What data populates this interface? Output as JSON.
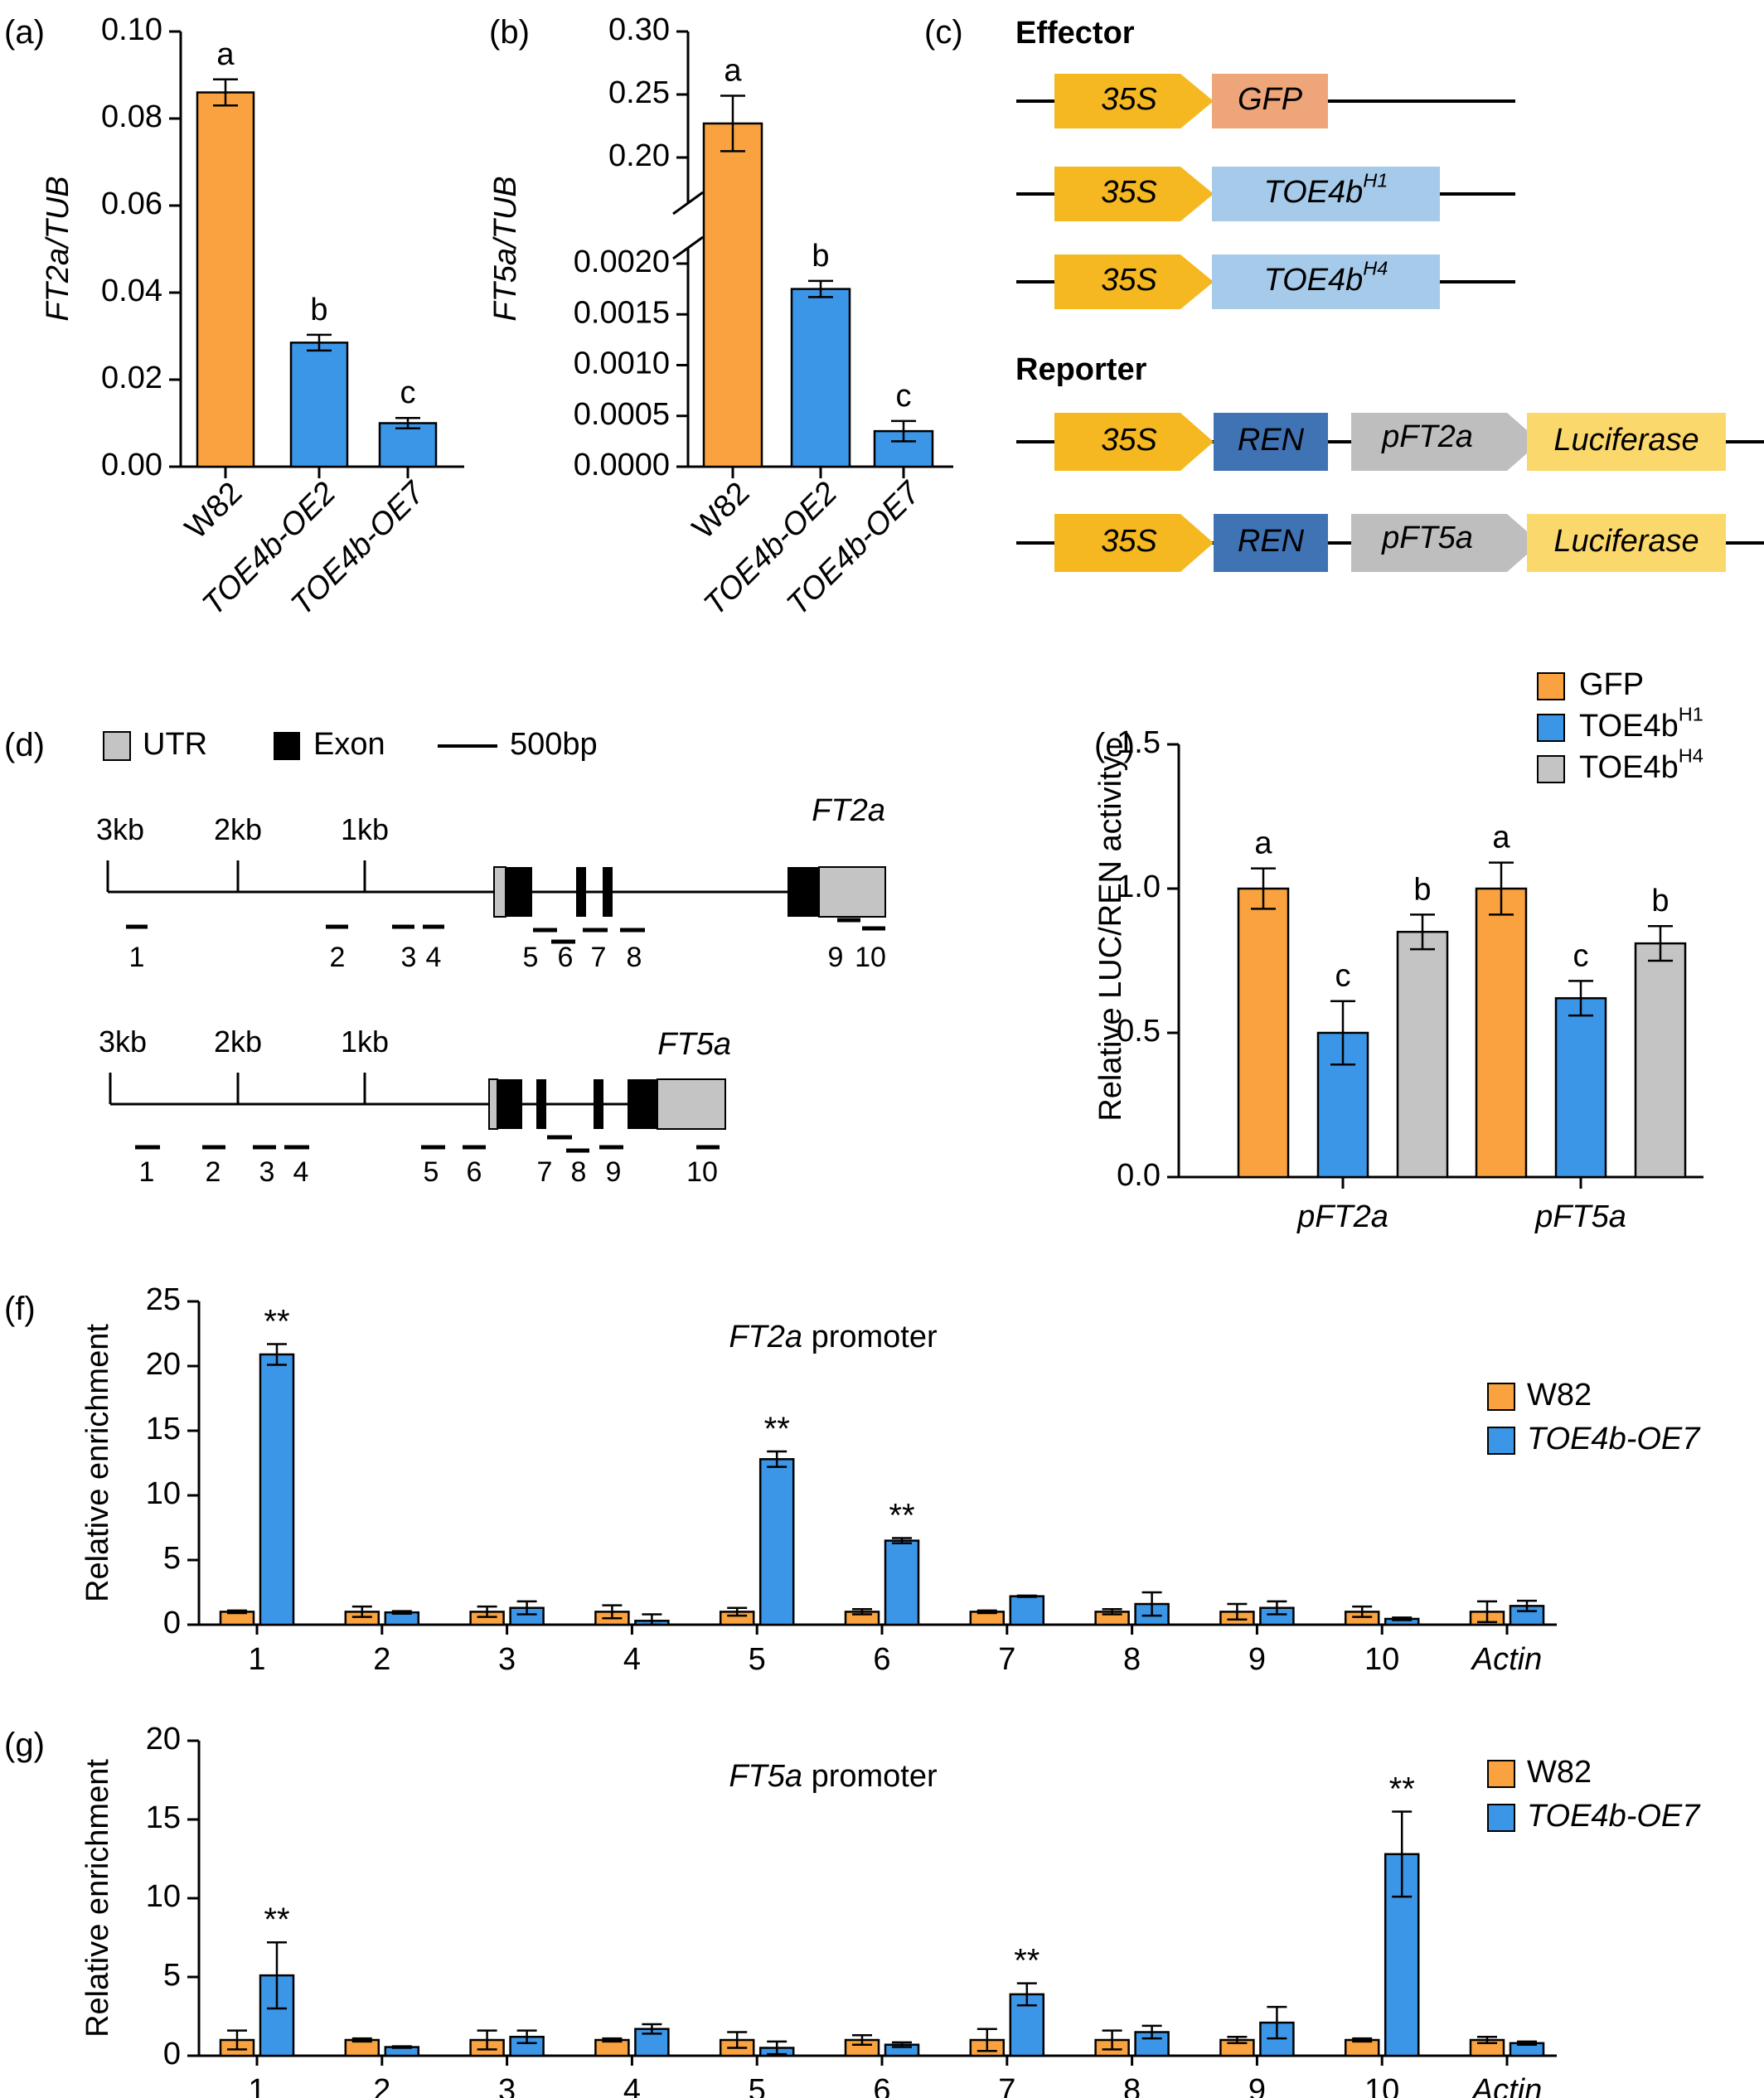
{
  "colors": {
    "orange": "#F9A23F",
    "blue": "#3C96E8",
    "gray": "#C4C4C4",
    "arrow_yellow": "#F5B820",
    "gfp_salmon": "#EFA57A",
    "toe_blue": "#A6CBEA",
    "ren_blue": "#3F73B4",
    "promoter_gray": "#BEBEBE",
    "luc_yellow": "#FBD86B"
  },
  "chart_data": [
    {
      "id": "a",
      "panel_label": "(a)",
      "type": "bar",
      "ylabel": "FT2a/TUB",
      "categories": [
        "W82",
        "TOE4b-OE2",
        "TOE4b-OE7"
      ],
      "values": [
        0.086,
        0.0285,
        0.01
      ],
      "errors": [
        0.003,
        0.0018,
        0.0012
      ],
      "letters": [
        "a",
        "b",
        "c"
      ],
      "ylim": [
        0,
        0.1
      ],
      "yticks": [
        "0.00",
        "0.02",
        "0.04",
        "0.06",
        "0.08",
        "0.10"
      ]
    },
    {
      "id": "b",
      "panel_label": "(b)",
      "type": "bar",
      "ylabel": "FT5a/TUB",
      "broken_axis": true,
      "categories": [
        "W82",
        "TOE4b-OE2",
        "TOE4b-OE7"
      ],
      "values": [
        0.227,
        0.00175,
        0.00035
      ],
      "errors": [
        0.022,
        8e-05,
        0.0001
      ],
      "letters": [
        "a",
        "b",
        "c"
      ],
      "ylim_lower": [
        0,
        0.002
      ],
      "ylim_upper": [
        0.2,
        0.3
      ],
      "yticks_lower": [
        "0.0000",
        "0.0005",
        "0.0010",
        "0.0015",
        "0.0020"
      ],
      "yticks_upper": [
        "0.20",
        "0.25",
        "0.30"
      ]
    },
    {
      "id": "e",
      "panel_label": "(e)",
      "type": "bar",
      "ylabel": "Relative LUC/REN activity",
      "categories": [
        "pFT2a",
        "pFT5a"
      ],
      "series": [
        {
          "name": "GFP",
          "values": [
            1.0,
            1.0
          ],
          "errors": [
            0.07,
            0.09
          ],
          "letters": [
            "a",
            "a"
          ]
        },
        {
          "name": "TOE4b",
          "sup": "H1",
          "values": [
            0.5,
            0.62
          ],
          "errors": [
            0.11,
            0.06
          ],
          "letters": [
            "c",
            "c"
          ]
        },
        {
          "name": "TOE4b",
          "sup": "H4",
          "values": [
            0.85,
            0.81
          ],
          "errors": [
            0.06,
            0.06
          ],
          "letters": [
            "b",
            "b"
          ]
        }
      ],
      "ylim": [
        0,
        1.5
      ],
      "yticks": [
        "0.0",
        "0.5",
        "1.0",
        "1.5"
      ],
      "legend": "top-right"
    },
    {
      "id": "f",
      "panel_label": "(f)",
      "type": "bar",
      "title_italic": "FT2a",
      "title_rest": " promoter",
      "ylabel": "Relative enrichment",
      "categories": [
        "1",
        "2",
        "3",
        "4",
        "5",
        "6",
        "7",
        "8",
        "9",
        "10",
        "Actin"
      ],
      "series": [
        {
          "name": "W82",
          "values": [
            1,
            1,
            1,
            1,
            1,
            1,
            1,
            1,
            1,
            1,
            1
          ],
          "errors": [
            0.1,
            0.4,
            0.4,
            0.5,
            0.3,
            0.2,
            0.1,
            0.2,
            0.6,
            0.4,
            0.8
          ]
        },
        {
          "name": "TOE4b-OE7",
          "values": [
            20.9,
            0.95,
            1.3,
            0.3,
            12.8,
            6.5,
            2.2,
            1.6,
            1.3,
            0.45,
            1.45
          ],
          "errors": [
            0.8,
            0.1,
            0.5,
            0.5,
            0.6,
            0.2,
            0.05,
            0.9,
            0.5,
            0.1,
            0.4
          ]
        }
      ],
      "significance": [
        "**",
        "",
        "",
        "",
        "**",
        "**",
        "",
        "",
        "",
        "",
        ""
      ],
      "ylim": [
        0,
        25
      ],
      "yticks": [
        "0",
        "5",
        "10",
        "15",
        "20",
        "25"
      ],
      "legend": "right"
    },
    {
      "id": "g",
      "panel_label": "(g)",
      "type": "bar",
      "title_italic": "FT5a",
      "title_rest": " promoter",
      "ylabel": "Relative enrichment",
      "categories": [
        "1",
        "2",
        "3",
        "4",
        "5",
        "6",
        "7",
        "8",
        "9",
        "10",
        "Actin"
      ],
      "series": [
        {
          "name": "W82",
          "values": [
            1,
            1,
            1,
            1,
            1,
            1,
            1,
            1,
            1,
            1,
            1
          ],
          "errors": [
            0.6,
            0.1,
            0.6,
            0.1,
            0.5,
            0.3,
            0.7,
            0.6,
            0.2,
            0.1,
            0.2
          ]
        },
        {
          "name": "TOE4b-OE7",
          "values": [
            5.1,
            0.55,
            1.2,
            1.7,
            0.5,
            0.7,
            3.9,
            1.5,
            2.1,
            12.8,
            0.8
          ],
          "errors": [
            2.1,
            0.05,
            0.4,
            0.3,
            0.4,
            0.15,
            0.7,
            0.4,
            1.0,
            2.7,
            0.1
          ]
        }
      ],
      "significance": [
        "**",
        "",
        "",
        "",
        "",
        "",
        "**",
        "",
        "",
        "**",
        ""
      ],
      "ylim": [
        0,
        20
      ],
      "yticks": [
        "0",
        "5",
        "10",
        "15",
        "20"
      ],
      "legend": "right"
    }
  ],
  "panel_c": {
    "panel_label": "(c)",
    "effector_title": "Effector",
    "reporter_title": "Reporter",
    "effectors": [
      {
        "promoter": "35S",
        "gene": "GFP"
      },
      {
        "promoter": "35S",
        "gene": "TOE4b",
        "sup": "H1"
      },
      {
        "promoter": "35S",
        "gene": "TOE4b",
        "sup": "H4"
      }
    ],
    "reporters": [
      {
        "promoter": "35S",
        "ren": "REN",
        "test": "pFT2a",
        "luc": "Luciferase"
      },
      {
        "promoter": "35S",
        "ren": "REN",
        "test": "pFT5a",
        "luc": "Luciferase"
      }
    ]
  },
  "panel_d": {
    "panel_label": "(d)",
    "legend": {
      "utr": "UTR",
      "exon": "Exon",
      "scale": "500bp"
    },
    "genes": [
      {
        "name": "FT2a",
        "tick_labels": [
          "3kb",
          "2kb",
          "1kb"
        ],
        "fragments": [
          "1",
          "2",
          "3",
          "4",
          "5",
          "6",
          "7",
          "8",
          "9",
          "10"
        ]
      },
      {
        "name": "FT5a",
        "tick_labels": [
          "3kb",
          "2kb",
          "1kb"
        ],
        "fragments": [
          "1",
          "2",
          "3",
          "4",
          "5",
          "6",
          "7",
          "8",
          "9",
          "10"
        ]
      }
    ]
  }
}
